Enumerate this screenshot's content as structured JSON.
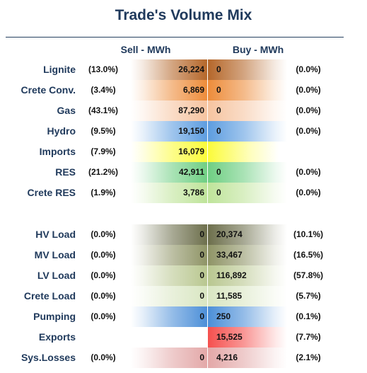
{
  "chart_data": {
    "type": "table",
    "title": "Trade's Volume Mix",
    "columns": [
      "Sell - MWh",
      "Buy - MWh"
    ],
    "sections": [
      {
        "rows": [
          {
            "label": "Lignite",
            "sell_pct": "(13.0%)",
            "sell": "26,224",
            "buy": "0",
            "buy_pct": "(0.0%)",
            "color": "#b5672a"
          },
          {
            "label": "Crete Conv.",
            "sell_pct": "(3.4%)",
            "sell": "6,869",
            "buy": "0",
            "buy_pct": "(0.0%)",
            "color": "#ed8c3a"
          },
          {
            "label": "Gas",
            "sell_pct": "(43.1%)",
            "sell": "87,290",
            "buy": "0",
            "buy_pct": "(0.0%)",
            "color": "#f6c4a0"
          },
          {
            "label": "Hydro",
            "sell_pct": "(9.5%)",
            "sell": "19,150",
            "buy": "0",
            "buy_pct": "(0.0%)",
            "color": "#5d9de0"
          },
          {
            "label": "Imports",
            "sell_pct": "(7.9%)",
            "sell": "16,079",
            "buy": "",
            "buy_pct": "",
            "color": "#fbfb3a"
          },
          {
            "label": "RES",
            "sell_pct": "(21.2%)",
            "sell": "42,911",
            "buy": "0",
            "buy_pct": "(0.0%)",
            "color": "#6fcf83"
          },
          {
            "label": "Crete RES",
            "sell_pct": "(1.9%)",
            "sell": "3,786",
            "buy": "0",
            "buy_pct": "(0.0%)",
            "color": "#bfe49a"
          }
        ]
      },
      {
        "rows": [
          {
            "label": "HV Load",
            "sell_pct": "(0.0%)",
            "sell": "0",
            "buy": "20,374",
            "buy_pct": "(10.1%)",
            "color": "#6d6f4c"
          },
          {
            "label": "MV Load",
            "sell_pct": "(0.0%)",
            "sell": "0",
            "buy": "33,467",
            "buy_pct": "(16.5%)",
            "color": "#8f9466"
          },
          {
            "label": "LV Load",
            "sell_pct": "(0.0%)",
            "sell": "0",
            "buy": "116,892",
            "buy_pct": "(57.8%)",
            "color": "#b9c790"
          },
          {
            "label": "Crete Load",
            "sell_pct": "(0.0%)",
            "sell": "0",
            "buy": "11,585",
            "buy_pct": "(5.7%)",
            "color": "#d9e6c2"
          },
          {
            "label": "Pumping",
            "sell_pct": "(0.0%)",
            "sell": "0",
            "buy": "250",
            "buy_pct": "(0.1%)",
            "color": "#4c8fd8"
          },
          {
            "label": "Exports",
            "sell_pct": "",
            "sell": "",
            "buy": "15,525",
            "buy_pct": "(7.7%)",
            "color": "#f5504e"
          },
          {
            "label": "Sys.Losses",
            "sell_pct": "(0.0%)",
            "sell": "0",
            "buy": "4,216",
            "buy_pct": "(2.1%)",
            "color": "#e3a8a8"
          }
        ]
      }
    ]
  }
}
